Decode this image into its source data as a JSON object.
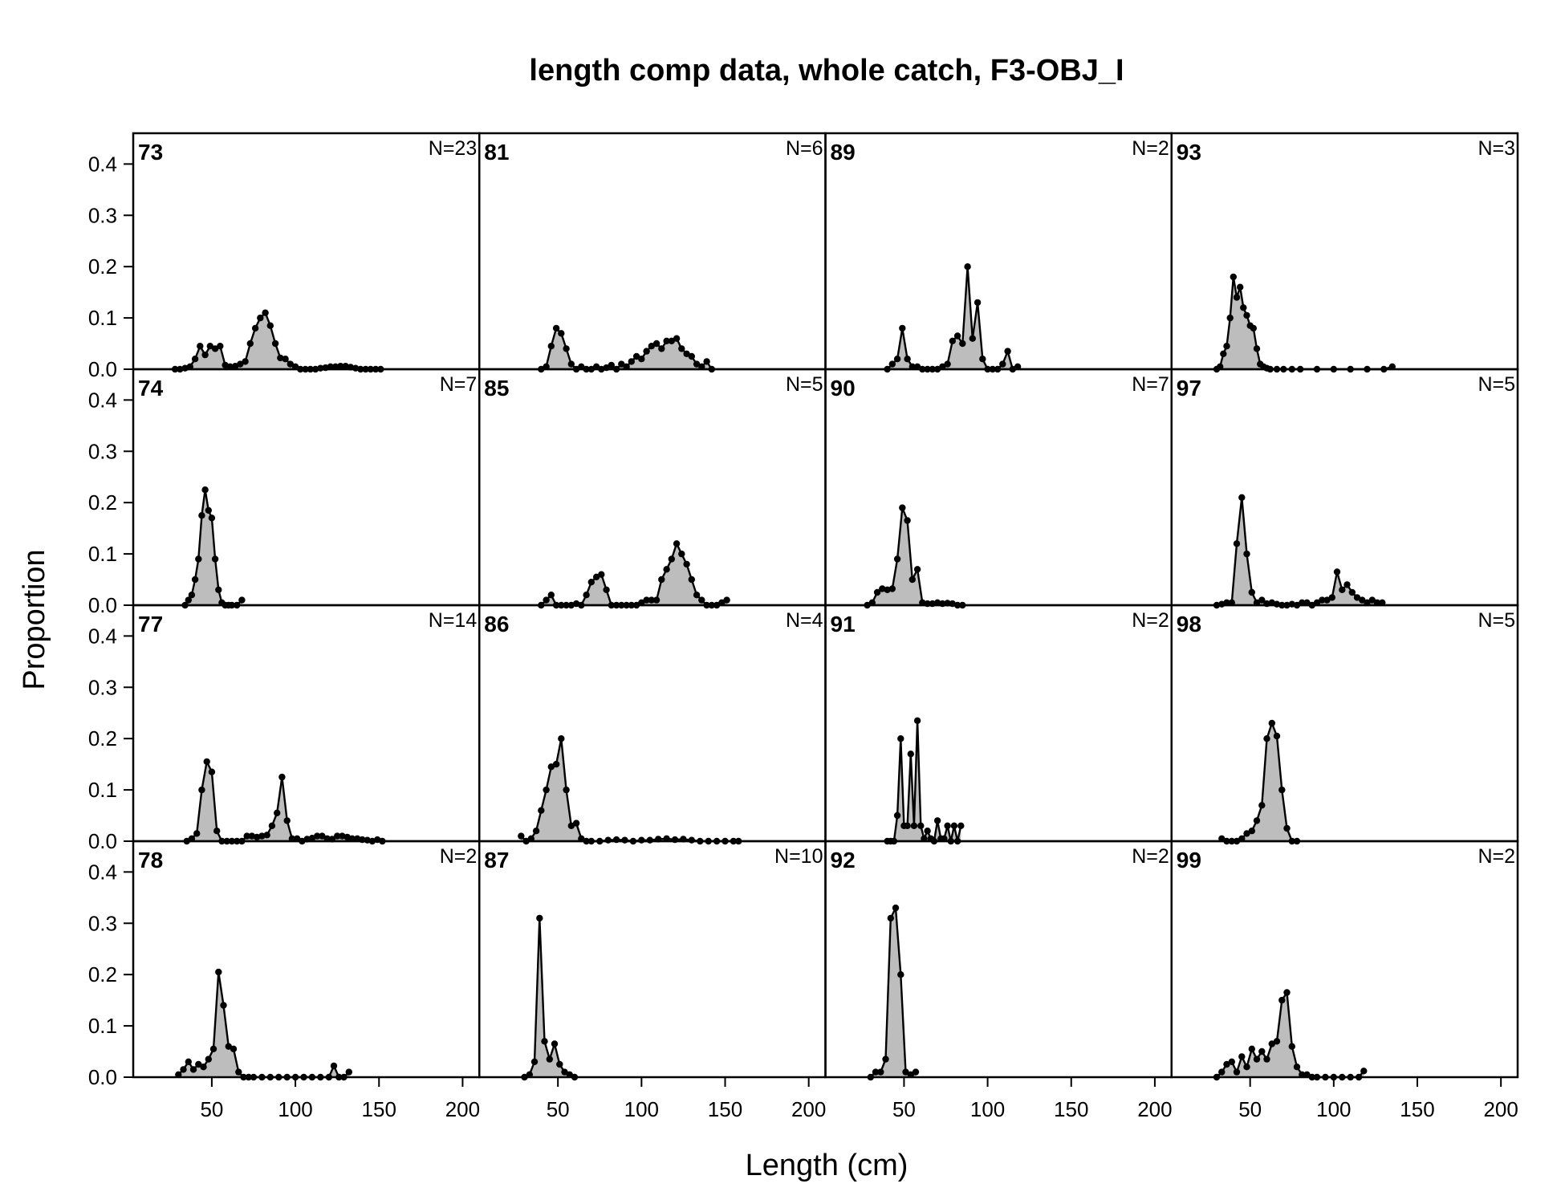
{
  "chart_data": {
    "type": "area",
    "title": "length comp data, whole catch, F3-OBJ_I",
    "xlabel": "Length (cm)",
    "ylabel": "Proportion",
    "xlim": [
      3,
      210
    ],
    "ylim": [
      0,
      0.46
    ],
    "x_ticks": [
      50,
      100,
      150,
      200
    ],
    "y_ticks": [
      0.0,
      0.1,
      0.2,
      0.3,
      0.4
    ],
    "y_tick_labels": [
      "0.0",
      "0.1",
      "0.2",
      "0.3",
      "0.4"
    ],
    "x_tick_labels": [
      "50",
      "100",
      "150",
      "200"
    ],
    "layout": {
      "rows": 4,
      "cols": 4
    },
    "fill_color": "#bdbdbd",
    "line_color": "#000000",
    "panels": [
      {
        "year": "73",
        "n": "N=23",
        "x": [
          28,
          31,
          34,
          37,
          40,
          43,
          46,
          49,
          52,
          55,
          58,
          61,
          64,
          67,
          70,
          73,
          76,
          79,
          82,
          85,
          88,
          91,
          94,
          97,
          100,
          103,
          106,
          109,
          112,
          115,
          118,
          121,
          124,
          127,
          130,
          133,
          136,
          139,
          142,
          145,
          148,
          151
        ],
        "y": [
          0,
          0,
          0.002,
          0.005,
          0.02,
          0.045,
          0.028,
          0.045,
          0.04,
          0.045,
          0.008,
          0.005,
          0.006,
          0.01,
          0.015,
          0.05,
          0.08,
          0.1,
          0.11,
          0.085,
          0.05,
          0.022,
          0.02,
          0.01,
          0.005,
          0,
          0,
          0,
          0,
          0.002,
          0.003,
          0.005,
          0.005,
          0.006,
          0.006,
          0.004,
          0.002,
          0,
          0,
          0,
          0,
          0
        ]
      },
      {
        "year": "81",
        "n": "N=6",
        "x": [
          40,
          43,
          46,
          49,
          52,
          55,
          58,
          61,
          64,
          67,
          70,
          73,
          76,
          79,
          82,
          85,
          88,
          91,
          94,
          97,
          100,
          103,
          106,
          109,
          112,
          115,
          118,
          121,
          124,
          127,
          130,
          133,
          136,
          139,
          142
        ],
        "y": [
          0,
          0.005,
          0.045,
          0.08,
          0.07,
          0.04,
          0.01,
          0,
          0.005,
          0,
          0,
          0.005,
          0,
          0.003,
          0.008,
          0,
          0.01,
          0.005,
          0.015,
          0.025,
          0.02,
          0.035,
          0.045,
          0.05,
          0.04,
          0.055,
          0.055,
          0.06,
          0.04,
          0.03,
          0.025,
          0.01,
          0.005,
          0.015,
          0
        ]
      },
      {
        "year": "89",
        "n": "N=2",
        "x": [
          40,
          43,
          46,
          49,
          52,
          55,
          58,
          61,
          64,
          67,
          70,
          73,
          76,
          79,
          82,
          85,
          88,
          91,
          94,
          97,
          100,
          103,
          106,
          109,
          112,
          115,
          118
        ],
        "y": [
          0,
          0.01,
          0.02,
          0.08,
          0.02,
          0.005,
          0.005,
          0,
          0,
          0,
          0,
          0.005,
          0.01,
          0.055,
          0.065,
          0.05,
          0.2,
          0.06,
          0.13,
          0.02,
          0,
          0,
          0,
          0.01,
          0.035,
          0,
          0.005
        ]
      },
      {
        "year": "93",
        "n": "N=3",
        "x": [
          30,
          32,
          34,
          36,
          38,
          40,
          42,
          44,
          46,
          48,
          50,
          52,
          54,
          56,
          58,
          60,
          62,
          66,
          70,
          75,
          80,
          90,
          100,
          110,
          120,
          130,
          135
        ],
        "y": [
          0,
          0.005,
          0.03,
          0.045,
          0.1,
          0.18,
          0.14,
          0.16,
          0.12,
          0.105,
          0.085,
          0.08,
          0.04,
          0.01,
          0.005,
          0.002,
          0,
          0,
          0,
          0,
          0,
          0,
          0,
          0,
          0,
          0,
          0.005
        ]
      },
      {
        "year": "74",
        "n": "N=7",
        "x": [
          34,
          36,
          38,
          40,
          42,
          44,
          46,
          48,
          50,
          52,
          54,
          56,
          58,
          60,
          62,
          65,
          68
        ],
        "y": [
          0,
          0.01,
          0.02,
          0.05,
          0.09,
          0.175,
          0.225,
          0.185,
          0.17,
          0.09,
          0.03,
          0.005,
          0,
          0,
          0,
          0,
          0.01
        ]
      },
      {
        "year": "85",
        "n": "N=5",
        "x": [
          40,
          43,
          46,
          49,
          52,
          55,
          58,
          61,
          64,
          67,
          70,
          73,
          76,
          79,
          82,
          85,
          88,
          91,
          94,
          97,
          100,
          103,
          106,
          109,
          112,
          115,
          118,
          121,
          124,
          127,
          130,
          133,
          136,
          139,
          142,
          145,
          148,
          151
        ],
        "y": [
          0,
          0.01,
          0.02,
          0,
          0,
          0,
          0,
          0.003,
          0,
          0.02,
          0.045,
          0.055,
          0.06,
          0.03,
          0,
          0,
          0,
          0,
          0,
          0,
          0.005,
          0.01,
          0.01,
          0.01,
          0.05,
          0.07,
          0.09,
          0.12,
          0.1,
          0.08,
          0.05,
          0.02,
          0.01,
          0,
          0,
          0,
          0.005,
          0.01
        ]
      },
      {
        "year": "90",
        "n": "N=7",
        "x": [
          28,
          31,
          34,
          37,
          40,
          43,
          46,
          49,
          52,
          55,
          58,
          61,
          64,
          67,
          70,
          73,
          76,
          79,
          82,
          85
        ],
        "y": [
          0,
          0.005,
          0.025,
          0.032,
          0.03,
          0.032,
          0.09,
          0.19,
          0.165,
          0.05,
          0.07,
          0.005,
          0.003,
          0.003,
          0.005,
          0.003,
          0.004,
          0.003,
          0,
          0
        ]
      },
      {
        "year": "97",
        "n": "N=5",
        "x": [
          30,
          33,
          36,
          39,
          42,
          45,
          48,
          51,
          54,
          57,
          60,
          63,
          66,
          69,
          72,
          75,
          78,
          81,
          84,
          87,
          90,
          93,
          96,
          99,
          102,
          105,
          108,
          111,
          114,
          117,
          120,
          123,
          126,
          129
        ],
        "y": [
          0,
          0.002,
          0.005,
          0.005,
          0.12,
          0.21,
          0.1,
          0.025,
          0.005,
          0.01,
          0.003,
          0.005,
          0.002,
          0,
          0,
          0.002,
          0,
          0.005,
          0.005,
          0,
          0.005,
          0.01,
          0.01,
          0.015,
          0.065,
          0.03,
          0.04,
          0.025,
          0.015,
          0.01,
          0.005,
          0.01,
          0.005,
          0.005
        ]
      },
      {
        "year": "77",
        "n": "N=14",
        "x": [
          35,
          38,
          41,
          44,
          47,
          50,
          53,
          56,
          59,
          62,
          65,
          68,
          71,
          74,
          77,
          80,
          83,
          86,
          89,
          92,
          95,
          98,
          101,
          104,
          107,
          110,
          113,
          116,
          119,
          122,
          125,
          128,
          131,
          134,
          137,
          140,
          143,
          146,
          149,
          152
        ],
        "y": [
          0,
          0.005,
          0.015,
          0.1,
          0.155,
          0.135,
          0.02,
          0,
          0,
          0,
          0,
          0,
          0.01,
          0.01,
          0.008,
          0.01,
          0.012,
          0.03,
          0.055,
          0.125,
          0.04,
          0.005,
          0.005,
          0,
          0.004,
          0.006,
          0.01,
          0.01,
          0.005,
          0.004,
          0.01,
          0.01,
          0.008,
          0.005,
          0.005,
          0.003,
          0.002,
          0,
          0.003,
          0
        ]
      },
      {
        "year": "86",
        "n": "N=4",
        "x": [
          28,
          31,
          34,
          37,
          40,
          43,
          46,
          49,
          52,
          55,
          58,
          61,
          64,
          67,
          70,
          75,
          80,
          85,
          90,
          95,
          100,
          105,
          110,
          115,
          120,
          125,
          130,
          135,
          140,
          145,
          150,
          155,
          158
        ],
        "y": [
          0.01,
          0,
          0.005,
          0.02,
          0.06,
          0.1,
          0.145,
          0.15,
          0.2,
          0.1,
          0.03,
          0.035,
          0.005,
          0,
          0,
          0,
          0.002,
          0.003,
          0.002,
          0,
          0.002,
          0.002,
          0.004,
          0.005,
          0.003,
          0.004,
          0.002,
          0,
          0,
          0,
          0,
          0,
          0
        ]
      },
      {
        "year": "91",
        "n": "N=2",
        "x": [
          40,
          42,
          44,
          46,
          48,
          50,
          52,
          54,
          56,
          58,
          60,
          62,
          64,
          66,
          68,
          70,
          72,
          74,
          76,
          78,
          80,
          82,
          84
        ],
        "y": [
          0,
          0,
          0,
          0.05,
          0.2,
          0.03,
          0.03,
          0.17,
          0.03,
          0.235,
          0.03,
          0.005,
          0.02,
          0.005,
          0,
          0.04,
          0.005,
          0.005,
          0.03,
          0,
          0.03,
          0,
          0.03
        ]
      },
      {
        "year": "98",
        "n": "N=5",
        "x": [
          33,
          36,
          39,
          42,
          45,
          48,
          51,
          54,
          57,
          60,
          63,
          66,
          69,
          72,
          75,
          78
        ],
        "y": [
          0.005,
          0,
          0,
          0,
          0.005,
          0.015,
          0.02,
          0.04,
          0.07,
          0.2,
          0.23,
          0.205,
          0.1,
          0.025,
          0,
          0
        ]
      },
      {
        "year": "78",
        "n": "N=2",
        "x": [
          30,
          33,
          36,
          39,
          42,
          45,
          48,
          51,
          54,
          57,
          60,
          63,
          66,
          69,
          72,
          75,
          80,
          85,
          90,
          95,
          100,
          105,
          110,
          115,
          120,
          123,
          126,
          129,
          132
        ],
        "y": [
          0.005,
          0.015,
          0.03,
          0.015,
          0.025,
          0.02,
          0.035,
          0.055,
          0.205,
          0.14,
          0.06,
          0.055,
          0.01,
          0,
          0,
          0,
          0,
          0,
          0,
          0,
          0,
          0,
          0,
          0,
          0,
          0.022,
          0,
          0,
          0.01
        ]
      },
      {
        "year": "87",
        "n": "N=10",
        "x": [
          30,
          33,
          36,
          39,
          42,
          45,
          48,
          51,
          54,
          57,
          60
        ],
        "y": [
          0,
          0.005,
          0.03,
          0.31,
          0.07,
          0.035,
          0.065,
          0.025,
          0.01,
          0.005,
          0
        ]
      },
      {
        "year": "92",
        "n": "N=2",
        "x": [
          30,
          33,
          36,
          39,
          42,
          45,
          48,
          51,
          54,
          57
        ],
        "y": [
          0,
          0.01,
          0.01,
          0.035,
          0.31,
          0.33,
          0.2,
          0.01,
          0.005,
          0.01
        ]
      },
      {
        "year": "99",
        "n": "N=2",
        "x": [
          30,
          33,
          36,
          39,
          42,
          45,
          48,
          51,
          54,
          57,
          60,
          63,
          66,
          69,
          72,
          75,
          78,
          81,
          84,
          87,
          90,
          95,
          100,
          105,
          110,
          115,
          118
        ],
        "y": [
          0,
          0.01,
          0.025,
          0.03,
          0.01,
          0.04,
          0.02,
          0.055,
          0.035,
          0.05,
          0.035,
          0.065,
          0.07,
          0.15,
          0.165,
          0.06,
          0.02,
          0.005,
          0.005,
          0,
          0,
          0,
          0,
          0,
          0,
          0,
          0.012
        ]
      }
    ]
  }
}
